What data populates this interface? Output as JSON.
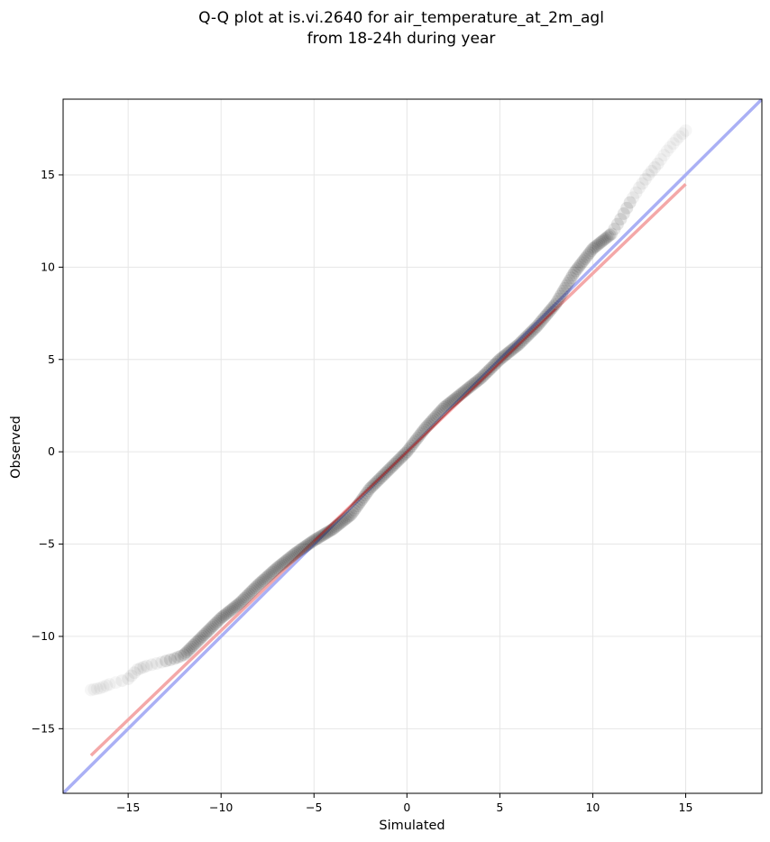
{
  "chart_data": {
    "type": "scatter",
    "title_line1": "Q-Q plot at is.vi.2640 for air_temperature_at_2m_agl",
    "title_line2": "from 18-24h during year",
    "xlabel": "Simulated",
    "ylabel": "Observed",
    "xlim": [
      -18.5,
      19.1
    ],
    "ylim": [
      -18.5,
      19.1
    ],
    "xticks": [
      -15,
      -10,
      -5,
      0,
      5,
      10,
      15
    ],
    "yticks": [
      -15,
      -10,
      -5,
      0,
      5,
      10,
      15
    ],
    "grid": true,
    "quantile_knots": {
      "x": [
        -17.0,
        -16.5,
        -16.0,
        -15.0,
        -14.5,
        -14.0,
        -13.2,
        -12.5,
        -12.0,
        -11.0,
        -10.0,
        -9.0,
        -8.0,
        -7.0,
        -6.0,
        -5.0,
        -4.0,
        -3.0,
        -2.0,
        -1.0,
        0.0,
        1.0,
        2.0,
        3.0,
        4.0,
        5.0,
        6.0,
        7.0,
        8.0,
        9.0,
        10.0,
        11.0,
        11.5,
        12.0,
        12.5,
        13.0,
        13.5,
        14.0,
        14.5,
        15.0
      ],
      "y": [
        -12.9,
        -12.8,
        -12.6,
        -12.3,
        -11.8,
        -11.6,
        -11.4,
        -11.2,
        -11.0,
        -10.0,
        -9.0,
        -8.2,
        -7.2,
        -6.3,
        -5.5,
        -4.8,
        -4.2,
        -3.4,
        -2.0,
        -1.0,
        0.0,
        1.3,
        2.4,
        3.2,
        4.0,
        5.0,
        5.8,
        6.8,
        8.0,
        9.7,
        11.0,
        11.8,
        12.6,
        13.5,
        14.3,
        15.0,
        15.6,
        16.3,
        16.9,
        17.4
      ]
    },
    "points_per_unit": 12,
    "reference_lines": [
      {
        "name": "1:1 line",
        "color": "#aab0f5",
        "x": [
          -18.5,
          19.1
        ],
        "y": [
          -18.5,
          19.1
        ]
      },
      {
        "name": "regression line",
        "color": "#f4a8a8",
        "x": [
          -17.0,
          15.0
        ],
        "y": [
          -16.45,
          14.5
        ]
      }
    ],
    "point_color": "#000000"
  }
}
